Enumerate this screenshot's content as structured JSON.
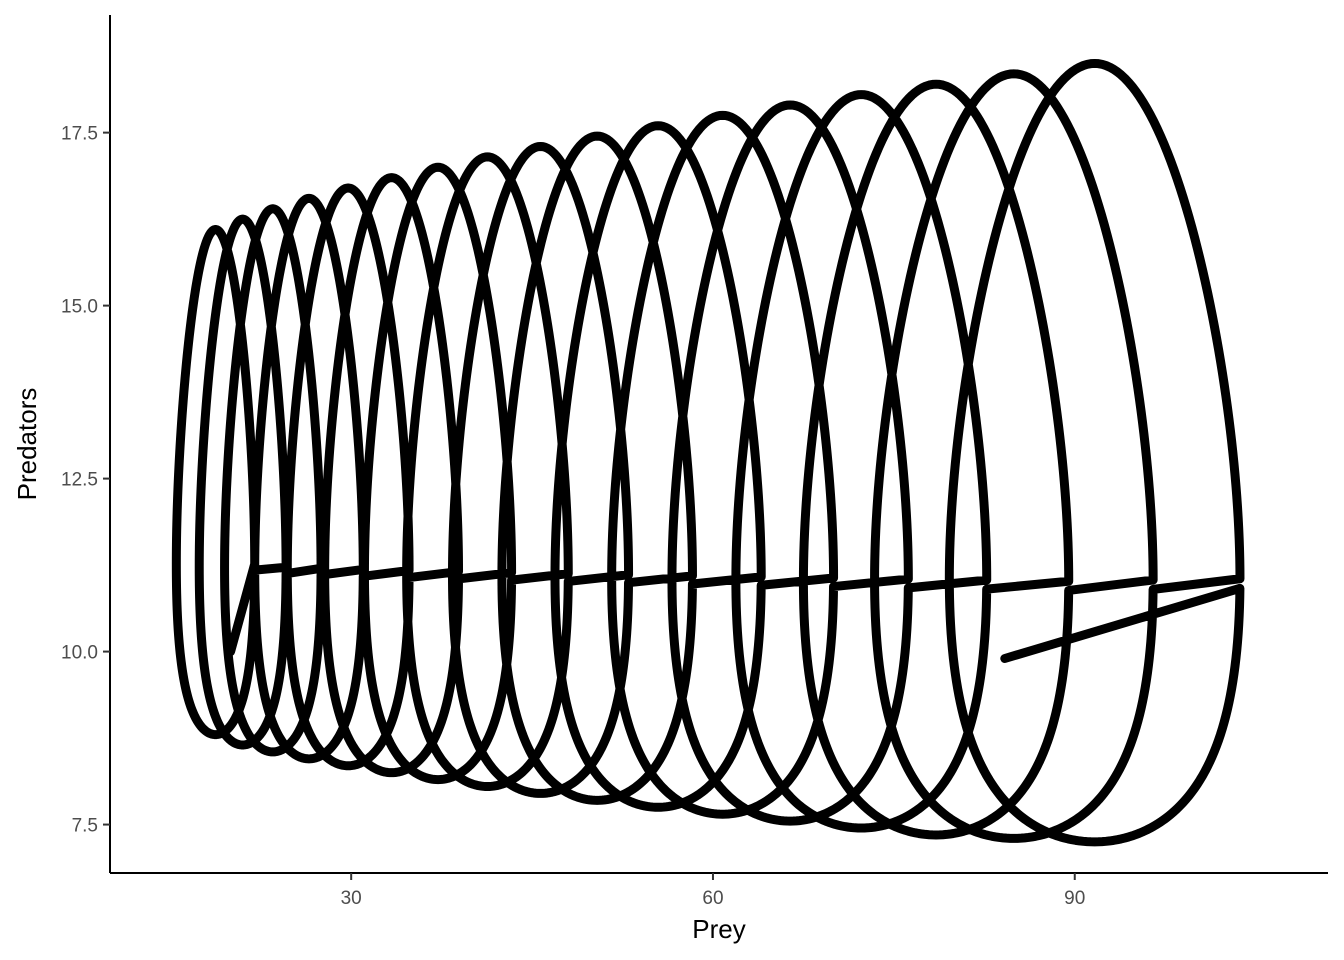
{
  "chart_data": {
    "type": "line",
    "title": "",
    "xlabel": "Prey",
    "ylabel": "Predators",
    "xlim": [
      10,
      111
    ],
    "ylim": [
      6.8,
      19.2
    ],
    "x_ticks": [
      30,
      60,
      90
    ],
    "x_tick_labels": [
      "30",
      "60",
      "90"
    ],
    "y_ticks": [
      7.5,
      10.0,
      12.5,
      15.0,
      17.5
    ],
    "y_tick_labels": [
      "7.5",
      "10.0",
      "12.5",
      "15.0",
      "17.5"
    ],
    "grid": false,
    "legend": "none",
    "line_color": "#000000",
    "series": [
      {
        "loops": [
          {
            "min_x": 15.5,
            "max_x": 22.0,
            "min_y": 8.8,
            "max_y": 16.1
          },
          {
            "min_x": 17.4,
            "max_x": 24.6,
            "min_y": 8.65,
            "max_y": 16.25
          },
          {
            "min_x": 19.5,
            "max_x": 27.5,
            "min_y": 8.55,
            "max_y": 16.4
          },
          {
            "min_x": 22.0,
            "max_x": 31.0,
            "min_y": 8.45,
            "max_y": 16.55
          },
          {
            "min_x": 24.7,
            "max_x": 34.8,
            "min_y": 8.35,
            "max_y": 16.7
          },
          {
            "min_x": 27.8,
            "max_x": 38.9,
            "min_y": 8.25,
            "max_y": 16.85
          },
          {
            "min_x": 31.1,
            "max_x": 43.3,
            "min_y": 8.15,
            "max_y": 17.0
          },
          {
            "min_x": 34.6,
            "max_x": 48.0,
            "min_y": 8.05,
            "max_y": 17.15
          },
          {
            "min_x": 38.4,
            "max_x": 53.0,
            "min_y": 7.95,
            "max_y": 17.3
          },
          {
            "min_x": 42.5,
            "max_x": 58.3,
            "min_y": 7.85,
            "max_y": 17.45
          },
          {
            "min_x": 46.9,
            "max_x": 64.0,
            "min_y": 7.75,
            "max_y": 17.6
          },
          {
            "min_x": 51.6,
            "max_x": 70.0,
            "min_y": 7.65,
            "max_y": 17.75
          },
          {
            "min_x": 56.6,
            "max_x": 76.2,
            "min_y": 7.55,
            "max_y": 17.9
          },
          {
            "min_x": 61.9,
            "max_x": 82.7,
            "min_y": 7.45,
            "max_y": 18.05
          },
          {
            "min_x": 67.5,
            "max_x": 89.5,
            "min_y": 7.35,
            "max_y": 18.2
          },
          {
            "min_x": 73.4,
            "max_x": 96.5,
            "min_y": 7.3,
            "max_y": 18.35
          },
          {
            "min_x": 79.6,
            "max_x": 103.7,
            "min_y": 7.25,
            "max_y": 18.5
          }
        ],
        "start": {
          "x": 20.0,
          "y": 10.0
        },
        "end": {
          "x": 84.2,
          "y": 9.9
        }
      }
    ]
  }
}
